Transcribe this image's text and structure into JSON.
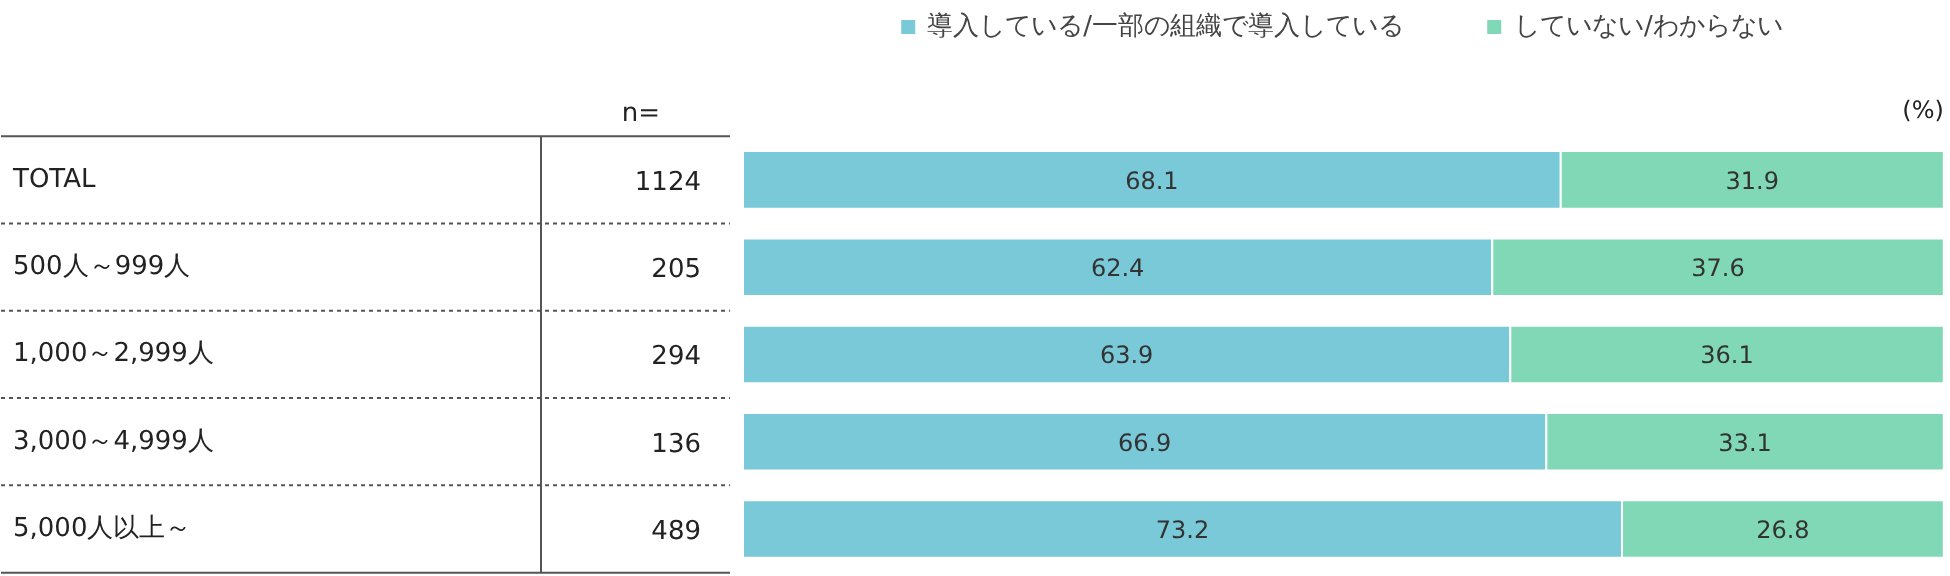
{
  "chart_data": {
    "type": "bar",
    "orientation": "horizontal",
    "stacked": true,
    "categories": [
      "TOTAL",
      "500人～999人",
      "1,000～2,999人",
      "3,000～4,999人",
      "5,000人以上～"
    ],
    "series": [
      {
        "name": "導入している/一部の組織で導入している",
        "color": "#79c9d8",
        "values": [
          68.1,
          62.4,
          63.9,
          66.9,
          73.2
        ]
      },
      {
        "name": "していない/わからない",
        "color": "#80d8b6",
        "values": [
          31.9,
          37.6,
          36.1,
          33.1,
          26.8
        ]
      }
    ],
    "xlim": [
      0,
      100
    ],
    "data_labels": true,
    "legend": "top",
    "grid": false,
    "tick_labels": "y",
    "annotations": [
      "n=",
      "(%)",
      "1124",
      "205",
      "294",
      "136",
      "489"
    ]
  }
}
